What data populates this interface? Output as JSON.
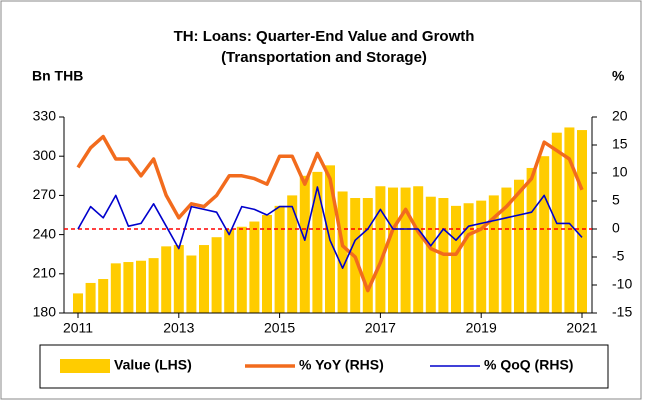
{
  "chart_data": {
    "type": "bar-line",
    "title": "TH: Loans: Quarter-End Value and Growth",
    "subtitle": "(Transportation and Storage)",
    "y_label": "Bn THB",
    "y2_label": "%",
    "categories": [
      "2011",
      null,
      null,
      null,
      null,
      null,
      null,
      null,
      "2013",
      null,
      null,
      null,
      null,
      null,
      null,
      null,
      "2015",
      null,
      null,
      null,
      null,
      null,
      null,
      null,
      "2017",
      null,
      null,
      null,
      null,
      null,
      null,
      null,
      "2019",
      null,
      null,
      null,
      null,
      null,
      null,
      null,
      "2021"
    ],
    "series": [
      {
        "name": "Value (LHS)",
        "kind": "bar",
        "color": "#ffcc00",
        "values": [
          195,
          203,
          206,
          218,
          219,
          220,
          222,
          231,
          232,
          224,
          232,
          238,
          244,
          246,
          250,
          255,
          262,
          270,
          285,
          288,
          293,
          273,
          268,
          268,
          277,
          276,
          276,
          277,
          269,
          268,
          262,
          264,
          266,
          270,
          276,
          282,
          291,
          300,
          318,
          322,
          320
        ]
      },
      {
        "name": "% YoY (RHS)",
        "kind": "line",
        "axis": "y2",
        "color": "#f26b1d",
        "values": [
          11,
          14.5,
          16.5,
          12.5,
          12.5,
          9.5,
          12.5,
          6,
          2,
          4.5,
          4,
          6,
          9.5,
          9.5,
          9,
          8,
          13,
          13,
          8,
          13.5,
          9,
          -3,
          -5,
          -11,
          -6,
          0,
          3.5,
          -0.5,
          -3.5,
          -4.5,
          -4.5,
          -1,
          0,
          2,
          4,
          6.5,
          9,
          15.5,
          14,
          12.5,
          7
        ]
      },
      {
        "name": "% QoQ (RHS)",
        "kind": "line",
        "axis": "y2",
        "color": "#0000cc",
        "values": [
          0,
          4,
          2,
          6,
          0.5,
          1,
          4.5,
          0.5,
          -3.5,
          4,
          3.5,
          3,
          -1,
          4,
          3.5,
          2.5,
          4,
          4,
          -2,
          7.5,
          -2,
          -7,
          -2,
          0,
          3.5,
          0,
          0,
          0,
          -3,
          0,
          -2,
          0.5,
          1,
          1.5,
          2,
          2.5,
          3,
          6,
          1,
          1,
          -1.5
        ]
      }
    ],
    "ylim": [
      180,
      330
    ],
    "yticks": [
      180,
      210,
      240,
      270,
      300,
      330
    ],
    "y2lim": [
      -15,
      20
    ],
    "y2ticks": [
      -15,
      -10,
      -5,
      0,
      5,
      10,
      15,
      20
    ],
    "zero_line_color": "#ff0000"
  }
}
